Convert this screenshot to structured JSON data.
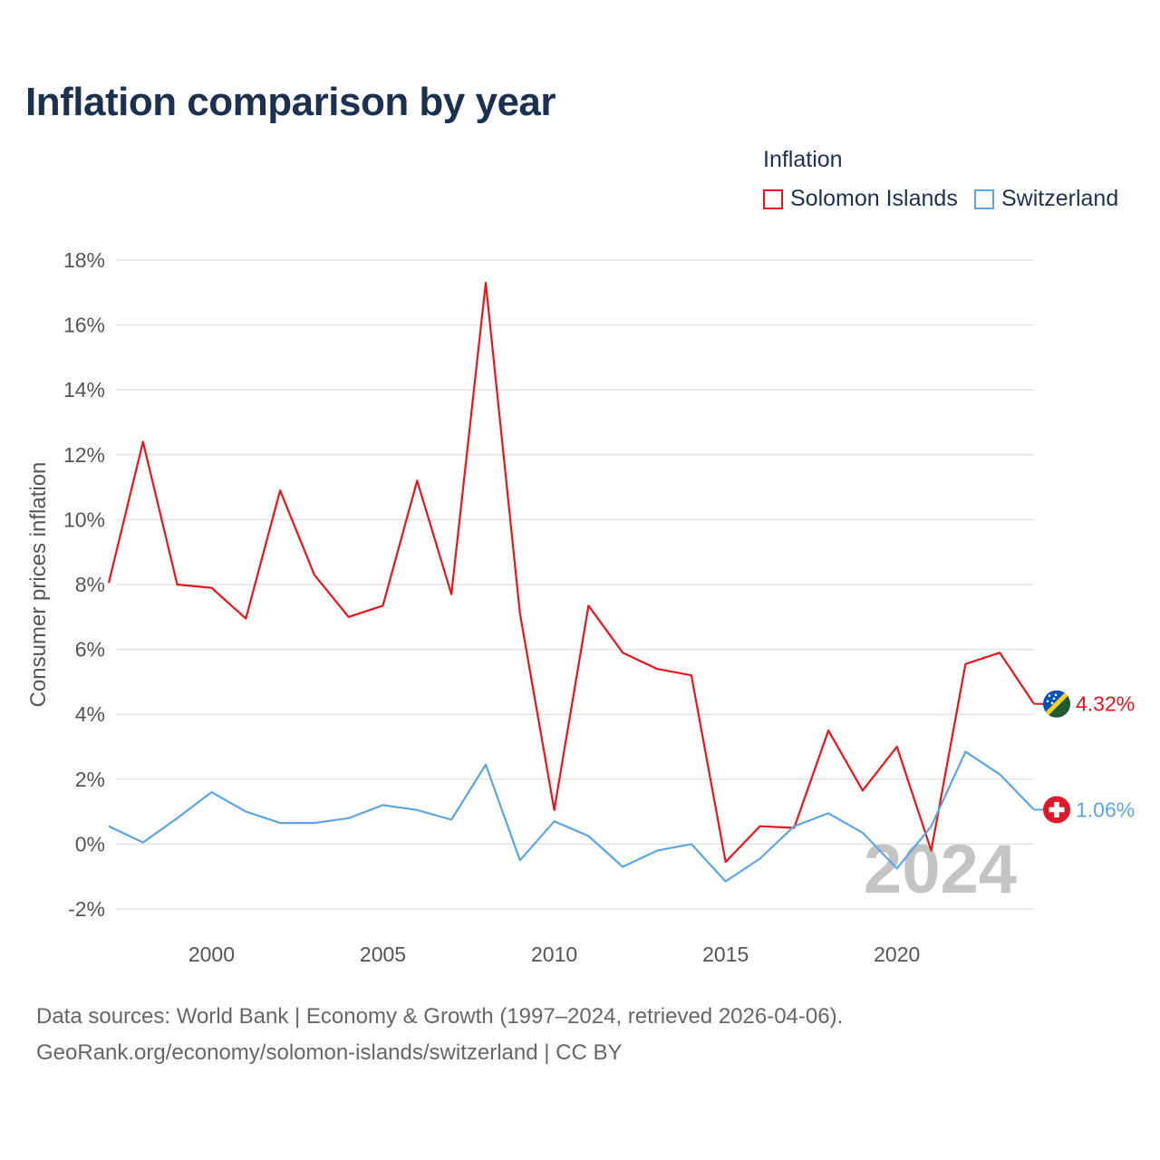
{
  "title": "Inflation comparison by year",
  "legend": {
    "title": "Inflation",
    "items": [
      {
        "label": "Solomon Islands",
        "color": "#e8141c"
      },
      {
        "label": "Switzerland",
        "color": "#5da5e0"
      }
    ]
  },
  "footer": {
    "line1": "Data sources: World Bank | Economy & Growth (1997–2024, retrieved 2026-04-06).",
    "line2": "GeoRank.org/economy/solomon-islands/switzerland | CC BY"
  },
  "chart_data": {
    "type": "line",
    "title": "Inflation comparison by year",
    "xlabel": "",
    "ylabel": "Consumer prices inflation",
    "x": [
      1997,
      1998,
      1999,
      2000,
      2001,
      2002,
      2003,
      2004,
      2005,
      2006,
      2007,
      2008,
      2009,
      2010,
      2011,
      2012,
      2013,
      2014,
      2015,
      2016,
      2017,
      2018,
      2019,
      2020,
      2021,
      2022,
      2023,
      2024
    ],
    "xlim": [
      1997,
      2024
    ],
    "ylim": [
      -2,
      18
    ],
    "yticks": [
      -2,
      0,
      2,
      4,
      6,
      8,
      10,
      12,
      14,
      16,
      18
    ],
    "ytick_labels": [
      "-2%",
      "0%",
      "2%",
      "4%",
      "6%",
      "8%",
      "10%",
      "12%",
      "14%",
      "16%",
      "18%"
    ],
    "xticks": [
      2000,
      2005,
      2010,
      2015,
      2020
    ],
    "xtick_labels": [
      "2000",
      "2005",
      "2010",
      "2015",
      "2020"
    ],
    "grid": true,
    "legend_position": "top-right",
    "current_year_label": "2024",
    "series": [
      {
        "name": "Solomon Islands",
        "color": "#e8141c",
        "flag_icon": "solomon-islands-flag-icon",
        "end_label": "4.32%",
        "values": [
          8.05,
          12.4,
          8.0,
          7.9,
          6.95,
          10.9,
          8.3,
          7.0,
          7.35,
          11.2,
          7.7,
          17.3,
          7.1,
          1.05,
          7.35,
          5.9,
          5.4,
          5.2,
          -0.55,
          0.55,
          0.5,
          3.5,
          1.65,
          3.0,
          -0.2,
          5.55,
          5.9,
          4.32
        ]
      },
      {
        "name": "Switzerland",
        "color": "#5da5e0",
        "flag_icon": "switzerland-flag-icon",
        "end_label": "1.06%",
        "values": [
          0.55,
          0.05,
          0.8,
          1.6,
          1.0,
          0.65,
          0.65,
          0.8,
          1.2,
          1.05,
          0.75,
          2.45,
          -0.5,
          0.7,
          0.25,
          -0.7,
          -0.2,
          0.0,
          -1.15,
          -0.45,
          0.55,
          0.95,
          0.35,
          -0.75,
          0.55,
          2.85,
          2.15,
          1.06
        ]
      }
    ]
  }
}
